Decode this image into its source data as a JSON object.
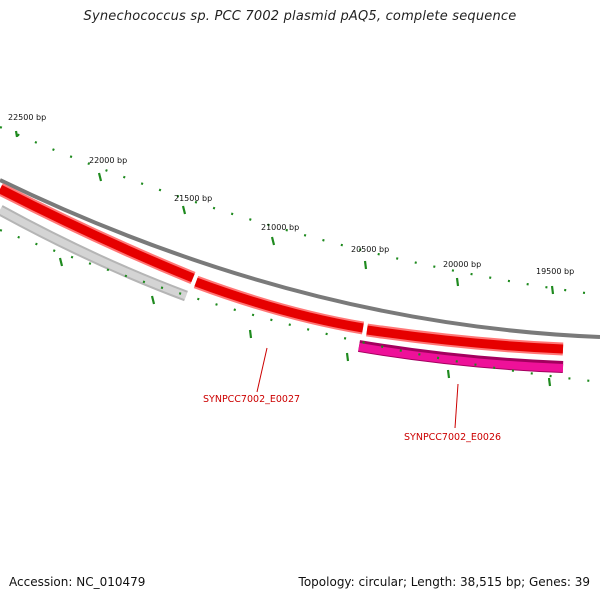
{
  "title": "Synechococcus sp. PCC 7002 plasmid pAQ5, complete sequence",
  "accession": "Accession: NC_010479",
  "summary": "Topology: circular; Length: 38,515 bp; Genes: 39",
  "colors": {
    "backbone": "#7a7a7a",
    "cds_forward": "#ee0000",
    "cds_forward_outline": "#ff6a6a",
    "cds_reverse": "#c8c8c8",
    "cds_highlight": "#ee1199",
    "tick": "#1e8a1e",
    "label": "#cc0000"
  },
  "scale_labels": [
    "22500 bp",
    "22000 bp",
    "21500 bp",
    "21000 bp",
    "20500 bp",
    "20000 bp",
    "19500 bp"
  ],
  "gene_labels": [
    "SYNPCC7002_E0027",
    "SYNPCC7002_E0026"
  ]
}
